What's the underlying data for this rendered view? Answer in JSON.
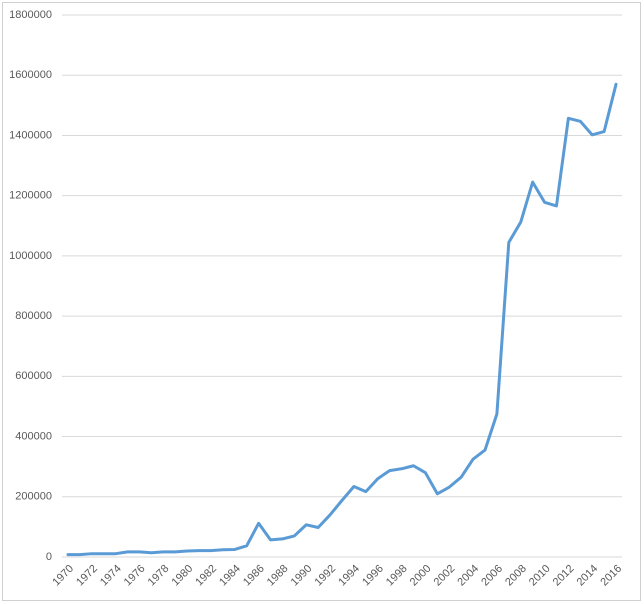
{
  "chart_data": {
    "type": "line",
    "categories": [
      "1970",
      null,
      "1972",
      null,
      "1974",
      null,
      "1976",
      null,
      "1978",
      null,
      "1980",
      null,
      "1982",
      null,
      "1984",
      null,
      "1986",
      null,
      "1988",
      null,
      "1990",
      null,
      "1992",
      null,
      "1994",
      null,
      "1996",
      null,
      "1998",
      null,
      "2000",
      null,
      "2002",
      null,
      "2004",
      null,
      "2006",
      null,
      "2008",
      null,
      "2010",
      null,
      "2012",
      null,
      "2014",
      null,
      "2016"
    ],
    "values": [
      8000,
      8000,
      11000,
      11000,
      11000,
      17000,
      17000,
      14000,
      17000,
      17000,
      20000,
      21000,
      21000,
      24000,
      25000,
      37000,
      112000,
      57000,
      60000,
      70000,
      107000,
      98000,
      140000,
      188000,
      234000,
      217000,
      260000,
      287000,
      293000,
      303000,
      280000,
      210000,
      232000,
      265000,
      325000,
      355000,
      475000,
      1045000,
      1112000,
      1245000,
      1178000,
      1166000,
      1457000,
      1447000,
      1402000,
      1413000,
      1570000
    ],
    "color": "#5b9bd5",
    "ylim": [
      0,
      1800000
    ],
    "yticks": [
      0,
      200000,
      400000,
      600000,
      800000,
      1000000,
      1200000,
      1400000,
      1600000,
      1800000
    ],
    "grid": true
  }
}
